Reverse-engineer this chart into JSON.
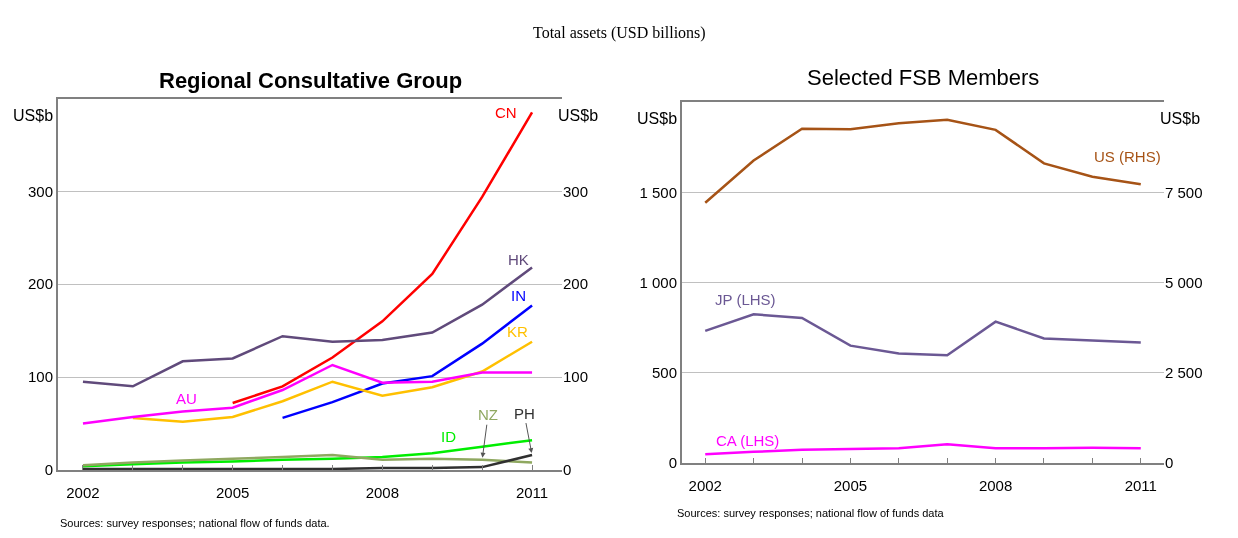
{
  "chart_data": [
    {
      "type": "line",
      "title": "Regional Consultative Group",
      "subtitle": "Total assets (USD billions)",
      "ylabel": "US$b",
      "y2label": "US$b",
      "x": [
        2002,
        2003,
        2004,
        2005,
        2006,
        2007,
        2008,
        2009,
        2010,
        2011
      ],
      "xlim": [
        2001.5,
        2011.6
      ],
      "xticks": [
        2002,
        {
          "value": 2003,
          "label": null
        },
        {
          "value": 2004,
          "label": null
        },
        2005,
        {
          "value": 2006,
          "label": null
        },
        {
          "value": 2007,
          "label": null
        },
        2008,
        {
          "value": 2009,
          "label": null
        },
        {
          "value": 2010,
          "label": null
        },
        2011
      ],
      "ylim": [
        0,
        400
      ],
      "yticks": [
        0,
        100,
        200,
        300
      ],
      "y2lim": [
        0,
        400
      ],
      "y2ticks": [
        0,
        100,
        200,
        300
      ],
      "grid": "y",
      "marker": "none",
      "line_style": "solid",
      "series": [
        {
          "name": "CN",
          "color": "#ff0000",
          "values": [
            null,
            null,
            null,
            72,
            90,
            121,
            160,
            211,
            294,
            385
          ]
        },
        {
          "name": "HK",
          "color": "#604a7b",
          "values": [
            95,
            90,
            117,
            120,
            144,
            138,
            140,
            148,
            178,
            218
          ]
        },
        {
          "name": "IN",
          "color": "#0000ff",
          "values": [
            null,
            null,
            null,
            null,
            56,
            73,
            93,
            101,
            136,
            177
          ]
        },
        {
          "name": "KR",
          "color": "#ffc000",
          "values": [
            null,
            56,
            52,
            57,
            74,
            95,
            80,
            89,
            106,
            138
          ]
        },
        {
          "name": "AU",
          "color": "#ff00ff",
          "values": [
            50,
            57,
            63,
            67,
            86,
            113,
            94,
            95,
            105,
            105
          ]
        },
        {
          "name": "ID",
          "color": "#00ee00",
          "values": [
            4,
            6,
            8,
            9,
            11,
            12,
            14,
            18,
            25,
            32
          ]
        },
        {
          "name": "NZ",
          "color": "#8fa860",
          "values": [
            5,
            8,
            10,
            12,
            14,
            16,
            11,
            12,
            11,
            8
          ]
        },
        {
          "name": "PH",
          "color": "#303030",
          "values": [
            1,
            1,
            1,
            1,
            1,
            1,
            2,
            2,
            3,
            16
          ]
        }
      ],
      "annotations": [
        "Sources: survey responses; national flow of funds data."
      ]
    },
    {
      "type": "line",
      "title": "Selected FSB Members",
      "ylabel": "US$b",
      "y2label": "US$b",
      "x": [
        2002,
        2003,
        2004,
        2005,
        2006,
        2007,
        2008,
        2009,
        2010,
        2011
      ],
      "xlim": [
        2001.52,
        2011.48
      ],
      "xticks": [
        2002,
        {
          "value": 2003,
          "label": null
        },
        {
          "value": 2004,
          "label": null
        },
        2005,
        {
          "value": 2006,
          "label": null
        },
        {
          "value": 2007,
          "label": null
        },
        2008,
        {
          "value": 2009,
          "label": null
        },
        {
          "value": 2010,
          "label": null
        },
        2011
      ],
      "ylim": [
        0,
        2000
      ],
      "yticks": [
        0,
        500,
        {
          "value": 1000,
          "label": "1 000"
        },
        {
          "value": 1500,
          "label": "1 500"
        }
      ],
      "y2lim": [
        0,
        10000
      ],
      "y2ticks": [
        0,
        {
          "value": 2500,
          "label": "2 500"
        },
        {
          "value": 5000,
          "label": "5 000"
        },
        {
          "value": 7500,
          "label": "7 500"
        }
      ],
      "grid": "y",
      "marker": "none",
      "line_style": "solid",
      "series": [
        {
          "name": "US (RHS)",
          "color": "#a65316",
          "axis": "y2",
          "values": [
            7220,
            8390,
            9270,
            9260,
            9420,
            9520,
            9240,
            8310,
            7940,
            7730
          ]
        },
        {
          "name": "JP (LHS)",
          "color": "#6b5894",
          "values": [
            733,
            825,
            805,
            651,
            607,
            598,
            784,
            691,
            680,
            669
          ]
        },
        {
          "name": "CA (LHS)",
          "color": "#ff00ff",
          "values": [
            49,
            62,
            73,
            78,
            82,
            104,
            82,
            82,
            84,
            82
          ]
        }
      ],
      "annotations": [
        "Sources: survey responses; national flow of funds data"
      ]
    }
  ]
}
